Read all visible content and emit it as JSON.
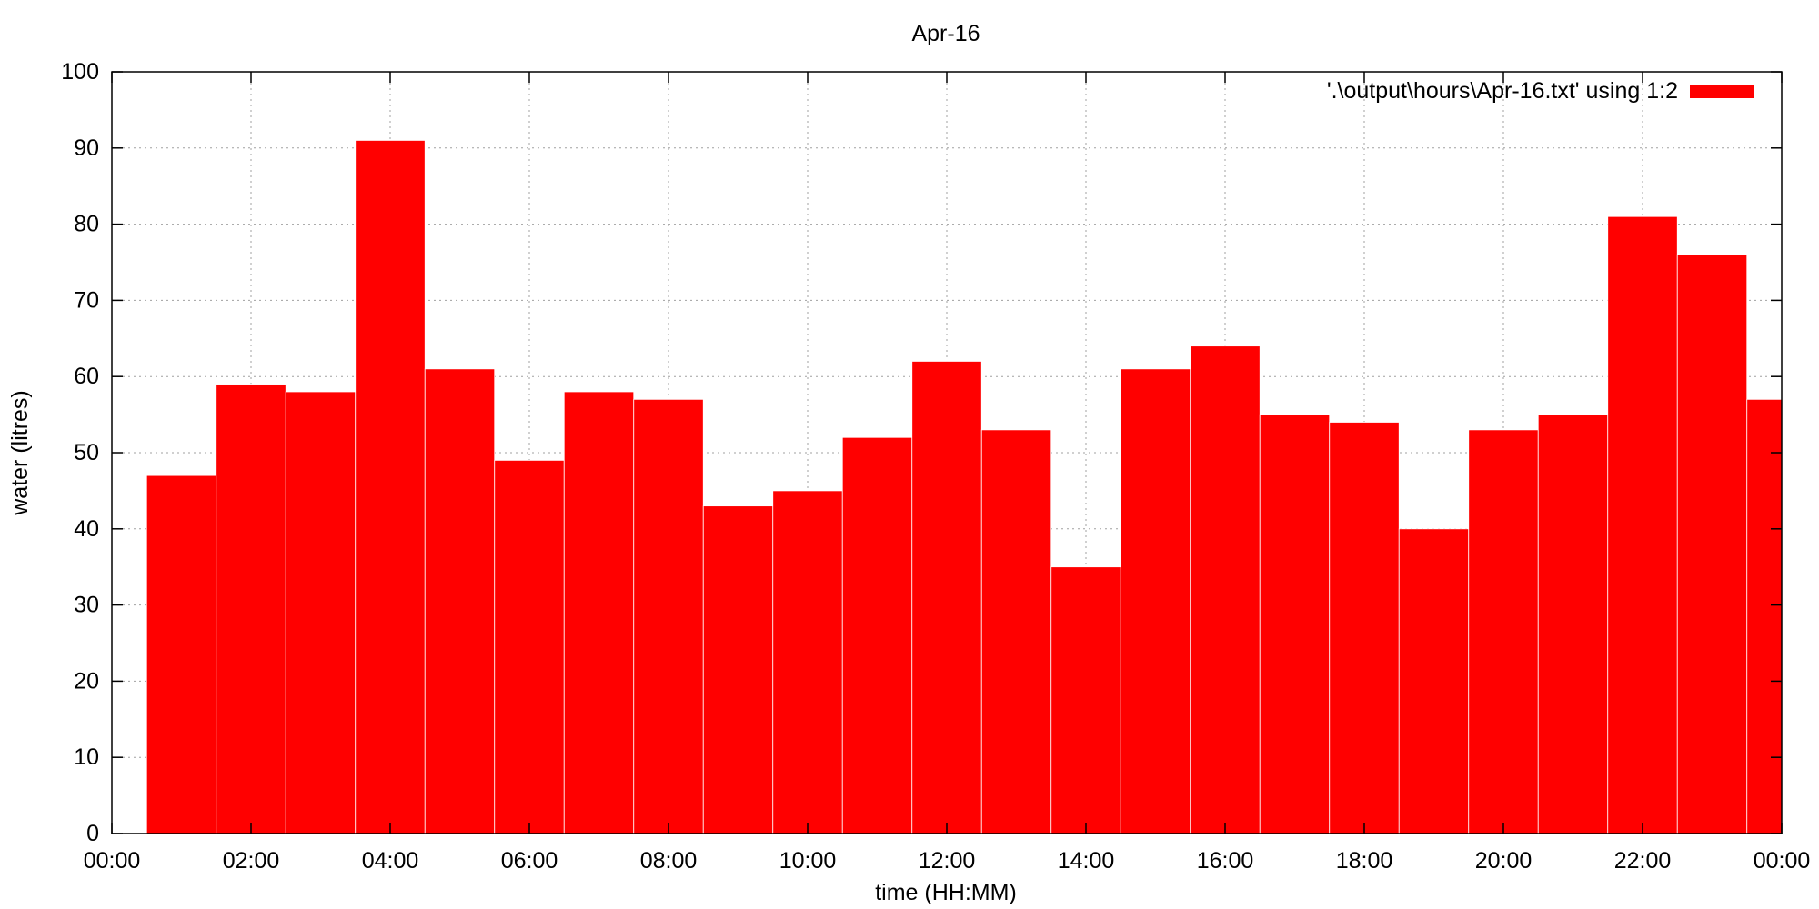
{
  "chart_data": {
    "type": "bar",
    "title": "Apr-16",
    "xlabel": "time (HH:MM)",
    "ylabel": "water (litres)",
    "ylim": [
      0,
      100
    ],
    "yticks": [
      0,
      10,
      20,
      30,
      40,
      50,
      60,
      70,
      80,
      90,
      100
    ],
    "xlim": [
      "00:00",
      "24:00"
    ],
    "xtick_labels": [
      "00:00",
      "02:00",
      "04:00",
      "06:00",
      "08:00",
      "10:00",
      "12:00",
      "14:00",
      "16:00",
      "18:00",
      "20:00",
      "22:00",
      "00:00"
    ],
    "grid": true,
    "legend_position": "top-right",
    "colors": {
      "bar": "#ff0000"
    },
    "series": [
      {
        "name": "'.\\output\\hours\\Apr-16.txt' using 1:2",
        "x": [
          "01:00",
          "02:00",
          "03:00",
          "04:00",
          "05:00",
          "06:00",
          "07:00",
          "08:00",
          "09:00",
          "10:00",
          "11:00",
          "12:00",
          "13:00",
          "14:00",
          "15:00",
          "16:00",
          "17:00",
          "18:00",
          "19:00",
          "20:00",
          "21:00",
          "22:00",
          "23:00",
          "24:00"
        ],
        "values": [
          47,
          59,
          58,
          91,
          61,
          49,
          58,
          57,
          43,
          45,
          52,
          62,
          53,
          35,
          61,
          64,
          55,
          54,
          40,
          53,
          55,
          81,
          76,
          57
        ]
      }
    ]
  }
}
